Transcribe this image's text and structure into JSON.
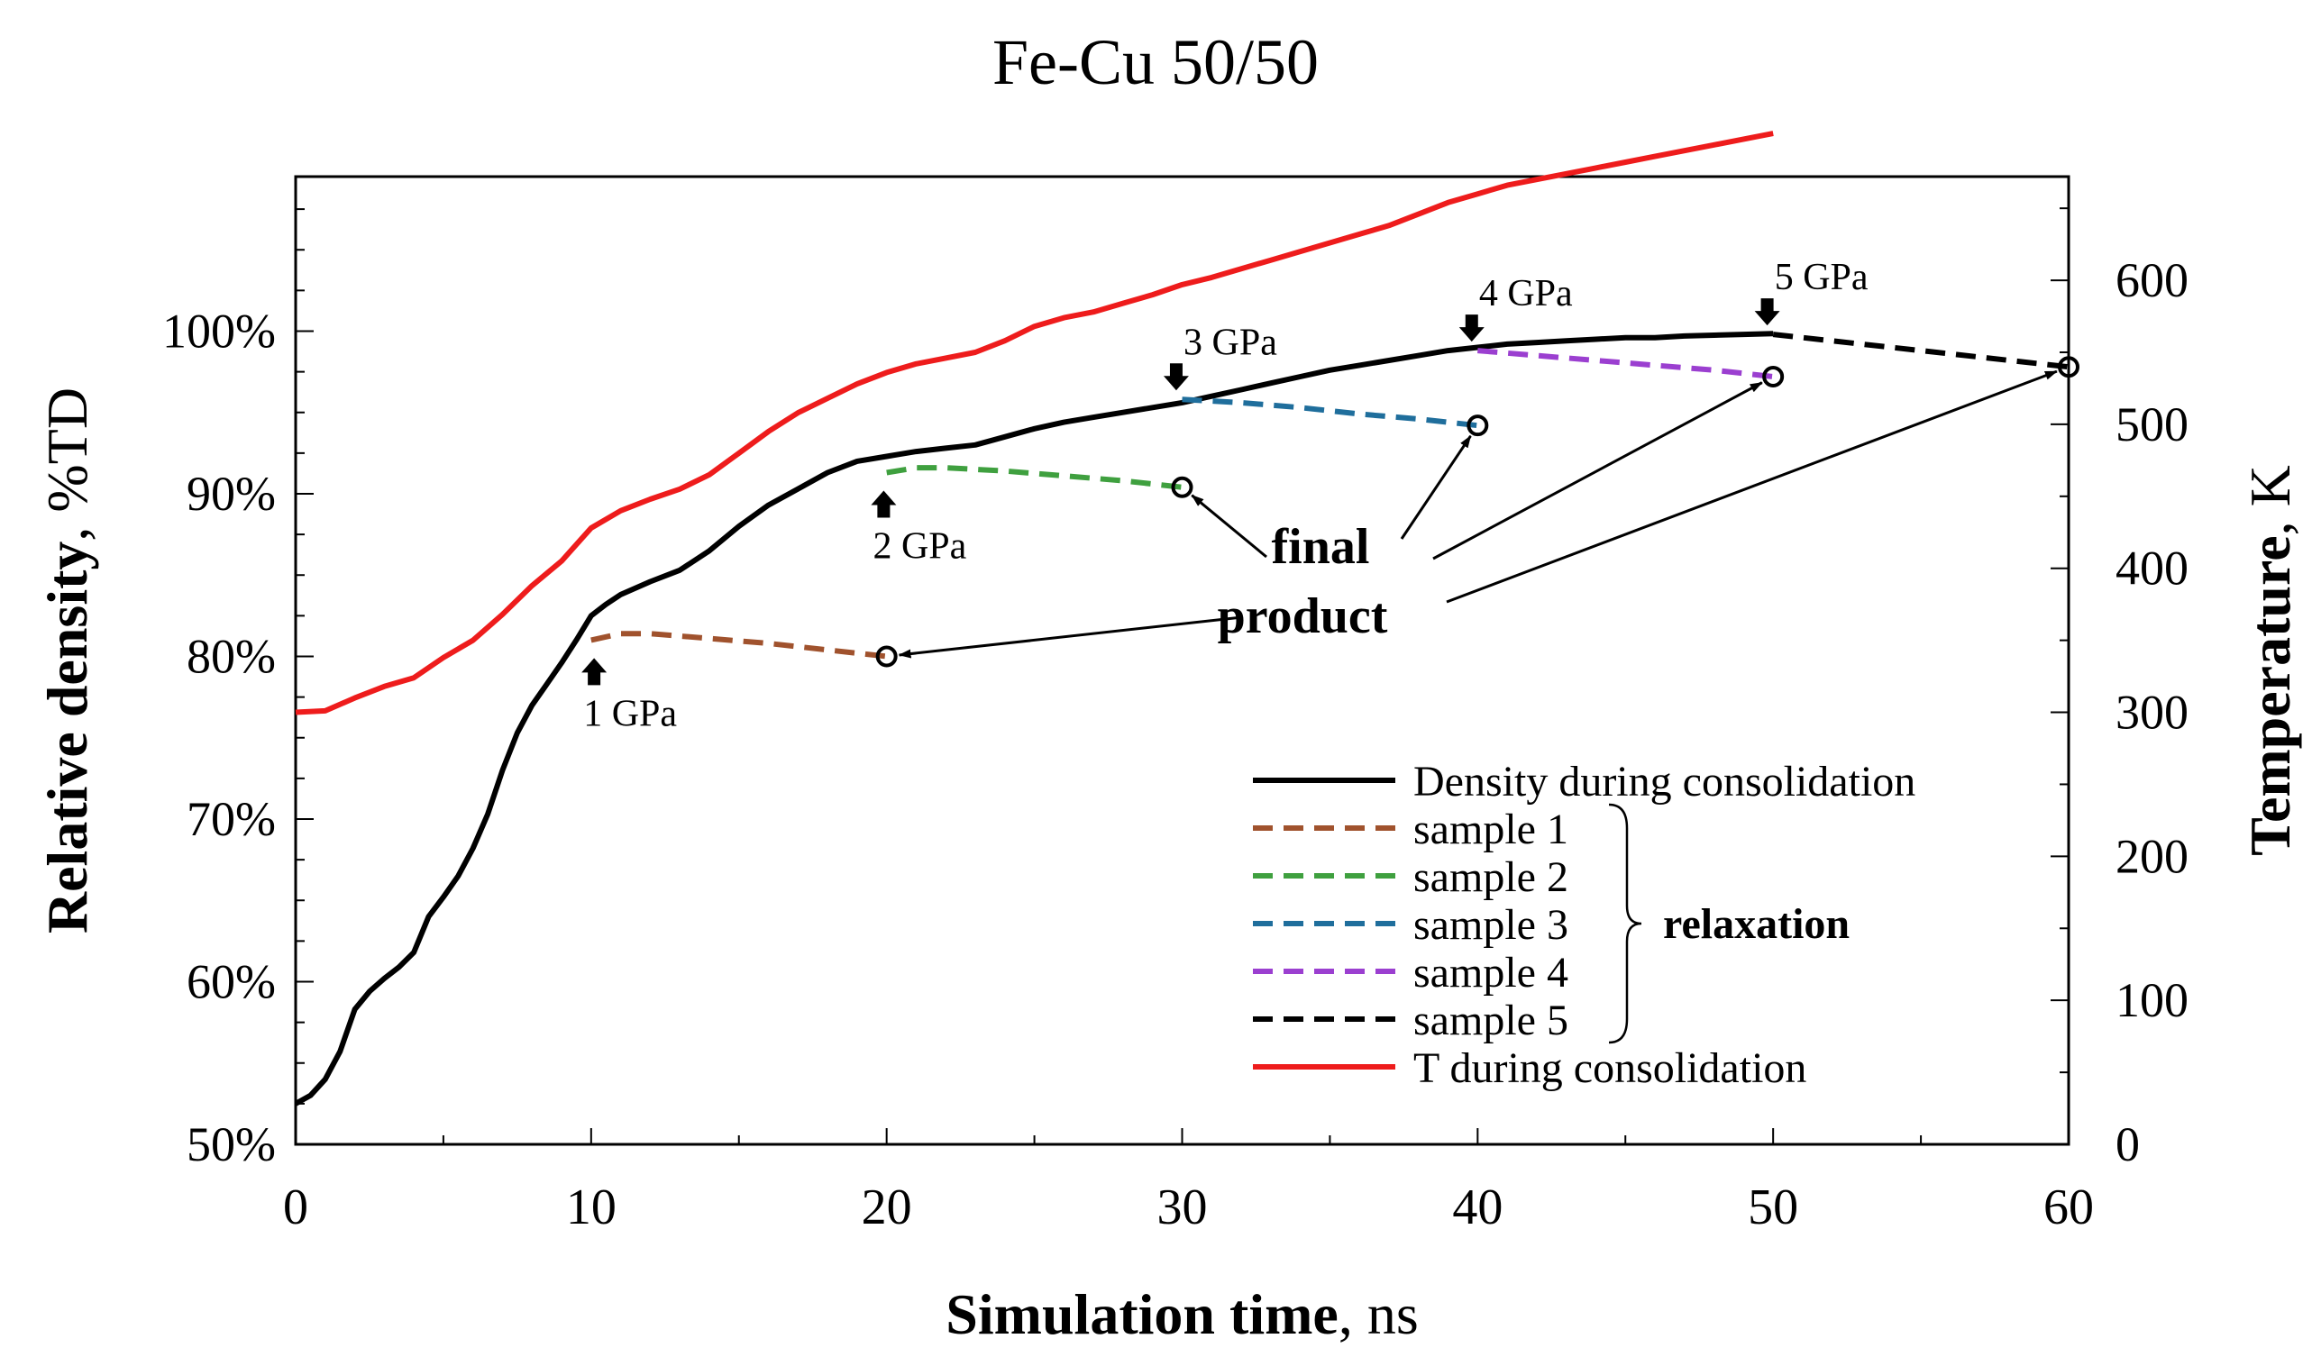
{
  "chart_data": {
    "type": "line",
    "title": "Fe-Cu 50/50",
    "xlabel": {
      "bold": "Simulation time",
      "rest": ", ns"
    },
    "ylabel_left": {
      "bold": "Relative density",
      "rest": ", %TD"
    },
    "ylabel_right": {
      "bold": "Temperature",
      "rest": ", K"
    },
    "x_range": [
      0,
      60
    ],
    "x_ticks": [
      0,
      10,
      20,
      30,
      40,
      50,
      60
    ],
    "x_tick_labels": [
      "0",
      "10",
      "20",
      "30",
      "40",
      "50",
      "60"
    ],
    "y_left_range": [
      50,
      109.5
    ],
    "y_left_ticks": [
      50,
      60,
      70,
      80,
      90,
      100
    ],
    "y_left_tick_labels": [
      "50%",
      "60%",
      "70%",
      "80%",
      "90%",
      "100%"
    ],
    "y_right_range": [
      0,
      672
    ],
    "y_right_ticks": [
      0,
      100,
      200,
      300,
      400,
      500,
      600
    ],
    "y_right_tick_labels": [
      "0",
      "100",
      "200",
      "300",
      "400",
      "500",
      "600"
    ],
    "series": [
      {
        "name": "Density during consolidation",
        "axis": "left",
        "style": "solid",
        "color": "#000000",
        "x": [
          0,
          0.5,
          1,
          1.5,
          2,
          2.5,
          3,
          3.5,
          4,
          4.5,
          5,
          5.5,
          6,
          6.5,
          7,
          7.5,
          8,
          8.5,
          9,
          9.5,
          10,
          10.5,
          11,
          12,
          13,
          14,
          15,
          16,
          17,
          18,
          19,
          20,
          21,
          22,
          23,
          24,
          25,
          26,
          27,
          28,
          29,
          30,
          31,
          32,
          33,
          34,
          35,
          36,
          37,
          38,
          39,
          40,
          41,
          42,
          43,
          44,
          45,
          46,
          47,
          48,
          49,
          50
        ],
        "y": [
          52.5,
          53.0,
          54.0,
          55.7,
          58.3,
          59.4,
          60.2,
          60.9,
          61.8,
          64.0,
          65.2,
          66.5,
          68.2,
          70.3,
          73.0,
          75.3,
          77.0,
          78.3,
          79.6,
          81.0,
          82.5,
          83.2,
          83.8,
          84.6,
          85.3,
          86.5,
          88.0,
          89.3,
          90.3,
          91.3,
          92.0,
          92.3,
          92.6,
          92.8,
          93.0,
          93.5,
          94.0,
          94.4,
          94.7,
          95.0,
          95.3,
          95.6,
          96.0,
          96.4,
          96.8,
          97.2,
          97.6,
          97.9,
          98.2,
          98.5,
          98.8,
          99.0,
          99.2,
          99.3,
          99.4,
          99.5,
          99.6,
          99.6,
          99.7,
          99.75,
          99.8,
          99.85
        ]
      },
      {
        "name": "sample 1",
        "axis": "left",
        "style": "dashed",
        "color": "#a0522d",
        "x": [
          10,
          11,
          12,
          14,
          16,
          18,
          20
        ],
        "y": [
          81.0,
          81.4,
          81.4,
          81.1,
          80.8,
          80.4,
          80.0
        ]
      },
      {
        "name": "sample 2",
        "axis": "left",
        "style": "dashed",
        "color": "#3fa03f",
        "x": [
          20,
          21,
          22,
          24,
          26,
          28,
          30
        ],
        "y": [
          91.3,
          91.6,
          91.6,
          91.4,
          91.1,
          90.8,
          90.4
        ]
      },
      {
        "name": "sample 3",
        "axis": "left",
        "style": "dashed",
        "color": "#1f6e9c",
        "x": [
          30,
          32,
          34,
          36,
          38,
          40
        ],
        "y": [
          95.8,
          95.6,
          95.3,
          94.9,
          94.6,
          94.2
        ]
      },
      {
        "name": "sample 4",
        "axis": "left",
        "style": "dashed",
        "color": "#9b3fd0",
        "x": [
          40,
          42,
          44,
          46,
          48,
          50
        ],
        "y": [
          98.8,
          98.5,
          98.2,
          97.9,
          97.6,
          97.2
        ]
      },
      {
        "name": "sample 5",
        "axis": "left",
        "style": "dashed",
        "color": "#000000",
        "x": [
          50,
          52,
          54,
          56,
          58,
          60
        ],
        "y": [
          99.8,
          99.4,
          99.0,
          98.6,
          98.2,
          97.8
        ]
      },
      {
        "name": "T during consolidation",
        "axis": "right",
        "style": "solid",
        "color": "#ee1c1c",
        "x": [
          0,
          1,
          2,
          3,
          4,
          5,
          6,
          7,
          8,
          9,
          10,
          11,
          12,
          13,
          14,
          15,
          16,
          17,
          18,
          19,
          20,
          21,
          22,
          23,
          24,
          25,
          26,
          27,
          28,
          29,
          30,
          31,
          32,
          33,
          34,
          35,
          36,
          37,
          38,
          39,
          40,
          41,
          42,
          43,
          44,
          45,
          46,
          47,
          48,
          49,
          50
        ],
        "y": [
          300,
          301,
          310,
          318,
          324,
          338,
          350,
          368,
          388,
          405,
          428,
          440,
          448,
          455,
          465,
          480,
          495,
          508,
          518,
          528,
          536,
          542,
          546,
          550,
          558,
          568,
          574,
          578,
          584,
          590,
          597,
          602,
          608,
          614,
          620,
          626,
          632,
          638,
          646,
          654,
          660,
          666,
          670,
          674,
          678,
          682,
          686,
          690,
          694,
          698,
          702
        ]
      }
    ],
    "final_points": [
      {
        "x": 20,
        "y": 80.0
      },
      {
        "x": 30,
        "y": 90.4
      },
      {
        "x": 40,
        "y": 94.2
      },
      {
        "x": 50,
        "y": 97.2
      },
      {
        "x": 60,
        "y": 97.8
      }
    ],
    "pressure_annotations": [
      {
        "label": "1 GPa",
        "x": 10.1,
        "y": 81.0,
        "arrow": "up"
      },
      {
        "label": "2 GPa",
        "x": 19.9,
        "y": 91.3,
        "arrow": "up"
      },
      {
        "label": "3 GPa",
        "x": 29.8,
        "y": 95.8,
        "arrow": "down"
      },
      {
        "label": "4 GPa",
        "x": 39.8,
        "y": 98.8,
        "arrow": "down"
      },
      {
        "label": "5 GPa",
        "x": 49.8,
        "y": 99.8,
        "arrow": "down"
      }
    ],
    "final_product_label": {
      "line1": "final",
      "line2": "product"
    },
    "relaxation_label": "relaxation",
    "legend": {
      "placement": "bottom-right",
      "entries": [
        "Density during consolidation",
        "sample 1",
        "sample 2",
        "sample 3",
        "sample 4",
        "sample 5",
        "T during consolidation"
      ]
    }
  }
}
